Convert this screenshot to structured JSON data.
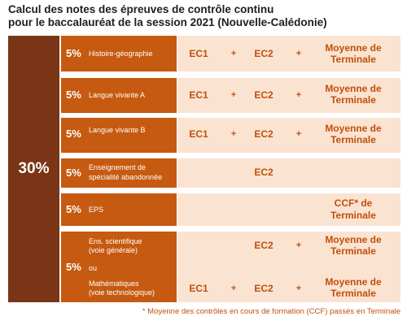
{
  "title": {
    "line1": "Calcul des notes des épreuves de contrôle continu",
    "line2": "pour le baccalauréat de la session 2021 (Nouvelle-Calédonie)"
  },
  "total_weight": "30%",
  "plus": "+",
  "rows": [
    {
      "pct": "5%",
      "subject": "Histoire-géographie",
      "ec1": "EC1",
      "ec2": "EC2",
      "moy1": "Moyenne de",
      "moy2": "Terminale"
    },
    {
      "pct": "5%",
      "subject": "Langue vivante A",
      "ec1": "EC1",
      "ec2": "EC2",
      "moy1": "Moyenne de",
      "moy2": "Terminale"
    },
    {
      "pct": "5%",
      "subject": "Langue vivante B",
      "ec1": "EC1",
      "ec2": "EC2",
      "moy1": "Moyenne de",
      "moy2": "Terminale"
    },
    {
      "pct": "5%",
      "subject1": "Enseignement de",
      "subject2": "spécialité abandonnée",
      "ec2": "EC2"
    },
    {
      "pct": "5%",
      "subject": "EPS",
      "ccf1": "CCF* de",
      "ccf2": "Terminale"
    }
  ],
  "sciences": {
    "pct": "5%",
    "a1": "Ens. scientifique",
    "a2": "(voie générale)",
    "ou": "ou",
    "b1": "Mathématiques",
    "b2": "(voie technologique)",
    "line_a": {
      "ec2": "EC2",
      "moy1": "Moyenne de",
      "moy2": "Terminale"
    },
    "line_b": {
      "ec1": "EC1",
      "ec2": "EC2",
      "moy1": "Moyenne de",
      "moy2": "Terminale"
    }
  },
  "footnote": "* Moyenne des contrôles en cours de formation (CCF) passés en Terminale"
}
